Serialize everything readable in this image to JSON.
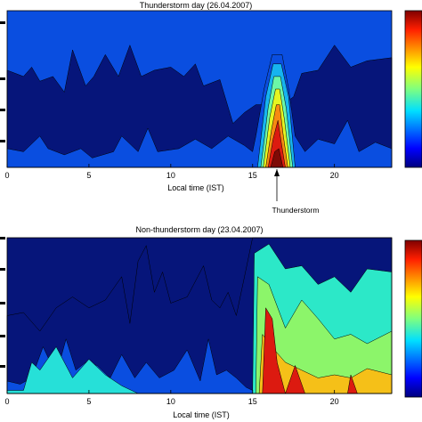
{
  "chart_data": [
    {
      "type": "heatmap",
      "title": "Thunderstorm day (26.04.2007)",
      "xlabel": "Local time (IST)",
      "ylabel": "",
      "xlim": [
        0,
        23.5
      ],
      "xticks": [
        "0",
        "5",
        "10",
        "15",
        "20"
      ],
      "annotation": "Thunderstorm",
      "annotation_x": 16.5,
      "colorbar": "jet",
      "levels": [
        {
          "level": 1,
          "color": "#06157a",
          "boundary": [
            [
              0,
              0.62
            ],
            [
              1,
              0.58
            ],
            [
              1.5,
              0.64
            ],
            [
              2,
              0.55
            ],
            [
              2.8,
              0.58
            ],
            [
              3.5,
              0.48
            ],
            [
              4,
              0.75
            ],
            [
              4.8,
              0.52
            ],
            [
              5.3,
              0.58
            ],
            [
              6,
              0.72
            ],
            [
              6.8,
              0.58
            ],
            [
              7.5,
              0.78
            ],
            [
              8.2,
              0.58
            ],
            [
              9,
              0.62
            ],
            [
              10,
              0.64
            ],
            [
              10.8,
              0.58
            ],
            [
              11.5,
              0.66
            ],
            [
              12,
              0.52
            ],
            [
              13,
              0.56
            ],
            [
              13.8,
              0.28
            ],
            [
              14.5,
              0.35
            ],
            [
              15.2,
              0.4
            ],
            [
              16.2,
              0.4
            ],
            [
              16.8,
              0.4
            ],
            [
              17.5,
              0.45
            ],
            [
              18,
              0.6
            ],
            [
              19,
              0.62
            ],
            [
              20,
              0.78
            ],
            [
              21,
              0.64
            ],
            [
              22,
              0.68
            ],
            [
              23.5,
              0.7
            ]
          ]
        },
        {
          "level": 2,
          "color": "#0a4ee0",
          "boundary": [
            [
              0,
              0.12
            ],
            [
              1,
              0.1
            ],
            [
              2,
              0.2
            ],
            [
              2.5,
              0.12
            ],
            [
              3.5,
              0.08
            ],
            [
              4.5,
              0.12
            ],
            [
              5.2,
              0.06
            ],
            [
              6.5,
              0.1
            ],
            [
              7,
              0.2
            ],
            [
              8,
              0.1
            ],
            [
              8.6,
              0.25
            ],
            [
              9.2,
              0.1
            ],
            [
              10.5,
              0.12
            ],
            [
              11.5,
              0.18
            ],
            [
              12.5,
              0.12
            ],
            [
              13.5,
              0.2
            ],
            [
              14.5,
              0.14
            ],
            [
              15,
              0.1
            ],
            [
              15.2,
              0.2
            ],
            [
              15.7,
              0.5
            ],
            [
              16.2,
              0.72
            ],
            [
              16.8,
              0.72
            ],
            [
              17.2,
              0.5
            ],
            [
              17.6,
              0.2
            ],
            [
              18.2,
              0.1
            ],
            [
              19,
              0.18
            ],
            [
              20,
              0.15
            ],
            [
              20.8,
              0.3
            ],
            [
              21.5,
              0.1
            ],
            [
              22.5,
              0.16
            ],
            [
              23.5,
              0.12
            ]
          ]
        },
        {
          "level": 3,
          "color": "#16b4f0",
          "boundary": [
            [
              15.3,
              0
            ],
            [
              15.8,
              0.45
            ],
            [
              16.25,
              0.66
            ],
            [
              16.75,
              0.66
            ],
            [
              17.2,
              0.45
            ],
            [
              17.6,
              0
            ]
          ]
        },
        {
          "level": 4,
          "color": "#6cf7a6",
          "boundary": [
            [
              15.5,
              0
            ],
            [
              15.95,
              0.38
            ],
            [
              16.3,
              0.58
            ],
            [
              16.7,
              0.58
            ],
            [
              17.05,
              0.38
            ],
            [
              17.45,
              0
            ]
          ]
        },
        {
          "level": 5,
          "color": "#e6f520",
          "boundary": [
            [
              15.65,
              0
            ],
            [
              16.05,
              0.32
            ],
            [
              16.4,
              0.5
            ],
            [
              16.65,
              0.5
            ],
            [
              16.95,
              0.3
            ],
            [
              17.3,
              0
            ]
          ]
        },
        {
          "level": 6,
          "color": "#f78a12",
          "boundary": [
            [
              15.8,
              0
            ],
            [
              16.15,
              0.24
            ],
            [
              16.45,
              0.4
            ],
            [
              16.65,
              0.4
            ],
            [
              16.85,
              0.22
            ],
            [
              17.15,
              0
            ]
          ]
        },
        {
          "level": 7,
          "color": "#dc1a10",
          "boundary": [
            [
              15.95,
              0
            ],
            [
              16.25,
              0.18
            ],
            [
              16.55,
              0.3
            ],
            [
              16.75,
              0.16
            ],
            [
              17.0,
              0
            ]
          ]
        },
        {
          "level": 8,
          "color": "#7e0a06",
          "boundary": [
            [
              16.1,
              0
            ],
            [
              16.35,
              0.1
            ],
            [
              16.6,
              0.12
            ],
            [
              16.85,
              0
            ]
          ]
        }
      ]
    },
    {
      "type": "heatmap",
      "title": "Non-thunderstorm day (23.04.2007)",
      "xlabel": "Local time (IST)",
      "ylabel": "",
      "xlim": [
        0,
        23.5
      ],
      "xticks": [
        "0",
        "5",
        "10",
        "15",
        "20"
      ],
      "colorbar": "jet",
      "levels": [
        {
          "level": 1,
          "color": "#06157a",
          "boundary": [
            [
              0,
              0.5
            ],
            [
              1,
              0.52
            ],
            [
              2,
              0.4
            ],
            [
              3,
              0.55
            ],
            [
              4,
              0.62
            ],
            [
              5,
              0.55
            ],
            [
              6,
              0.6
            ],
            [
              7,
              0.75
            ],
            [
              7.5,
              0.45
            ],
            [
              8,
              0.85
            ],
            [
              8.5,
              0.95
            ],
            [
              9,
              0.65
            ],
            [
              9.5,
              0.78
            ],
            [
              10,
              0.58
            ],
            [
              11,
              0.62
            ],
            [
              12,
              0.82
            ],
            [
              12.5,
              0.6
            ],
            [
              13,
              0.55
            ],
            [
              13.5,
              0.65
            ],
            [
              14,
              0.5
            ],
            [
              14.5,
              0.75
            ],
            [
              15,
              1
            ],
            [
              23.5,
              1
            ]
          ]
        },
        {
          "level": 2,
          "color": "#0a4ee0",
          "boundary": [
            [
              0,
              0.08
            ],
            [
              0.8,
              0.06
            ],
            [
              1.5,
              0.1
            ],
            [
              2.2,
              0.3
            ],
            [
              3,
              0.12
            ],
            [
              3.6,
              0.35
            ],
            [
              4.2,
              0.15
            ],
            [
              4.8,
              0.2
            ],
            [
              5.5,
              0.18
            ],
            [
              6.3,
              0.1
            ],
            [
              7,
              0.25
            ],
            [
              7.8,
              0.1
            ],
            [
              8.5,
              0.2
            ],
            [
              9.3,
              0.1
            ],
            [
              10.2,
              0.15
            ],
            [
              11,
              0.28
            ],
            [
              11.8,
              0.08
            ],
            [
              12.3,
              0.35
            ],
            [
              12.8,
              0.12
            ],
            [
              13.4,
              0.15
            ],
            [
              14,
              0.1
            ],
            [
              14.6,
              0.04
            ],
            [
              15,
              0.02
            ],
            [
              23.5,
              0.02
            ]
          ]
        },
        {
          "level": 3,
          "color": "#26e0d8",
          "boundary": [
            [
              0,
              0.02
            ],
            [
              1,
              0.02
            ],
            [
              1.5,
              0.2
            ],
            [
              2,
              0.15
            ],
            [
              3,
              0.3
            ],
            [
              4,
              0.1
            ],
            [
              5,
              0.22
            ],
            [
              6,
              0.12
            ],
            [
              7,
              0.05
            ],
            [
              8,
              0
            ],
            [
              23.5,
              0
            ]
          ]
        },
        {
          "level": 4,
          "color": "#2ce8c8",
          "boundary": [
            [
              15.0,
              0
            ],
            [
              15.1,
              0.9
            ],
            [
              16,
              0.96
            ],
            [
              17,
              0.8
            ],
            [
              18,
              0.82
            ],
            [
              19,
              0.7
            ],
            [
              20,
              0.75
            ],
            [
              21,
              0.65
            ],
            [
              22,
              0.8
            ],
            [
              23.5,
              0.78
            ]
          ]
        },
        {
          "level": 5,
          "color": "#8cf56a",
          "boundary": [
            [
              15.2,
              0
            ],
            [
              15.3,
              0.75
            ],
            [
              16,
              0.7
            ],
            [
              17,
              0.42
            ],
            [
              18,
              0.6
            ],
            [
              19,
              0.48
            ],
            [
              20,
              0.35
            ],
            [
              21,
              0.38
            ],
            [
              22,
              0.32
            ],
            [
              23.5,
              0.4
            ]
          ]
        },
        {
          "level": 6,
          "color": "#f5c018",
          "boundary": [
            [
              15.4,
              0
            ],
            [
              15.6,
              0.38
            ],
            [
              16,
              0.32
            ],
            [
              17,
              0.2
            ],
            [
              18,
              0.15
            ],
            [
              19,
              0.1
            ],
            [
              20,
              0.12
            ],
            [
              21,
              0.1
            ],
            [
              22,
              0.16
            ],
            [
              23.5,
              0.12
            ]
          ]
        },
        {
          "level": 7,
          "color": "#dc1a10",
          "boundary": [
            [
              15.6,
              0
            ],
            [
              15.8,
              0.55
            ],
            [
              16.2,
              0.48
            ],
            [
              16.5,
              0.2
            ],
            [
              17,
              0
            ],
            [
              17.6,
              0.18
            ],
            [
              18.2,
              0
            ]
          ]
        },
        {
          "level": 8,
          "color": "#dc1a10",
          "boundary": [
            [
              20.8,
              0
            ],
            [
              21.0,
              0.12
            ],
            [
              21.4,
              0
            ]
          ]
        }
      ]
    }
  ]
}
